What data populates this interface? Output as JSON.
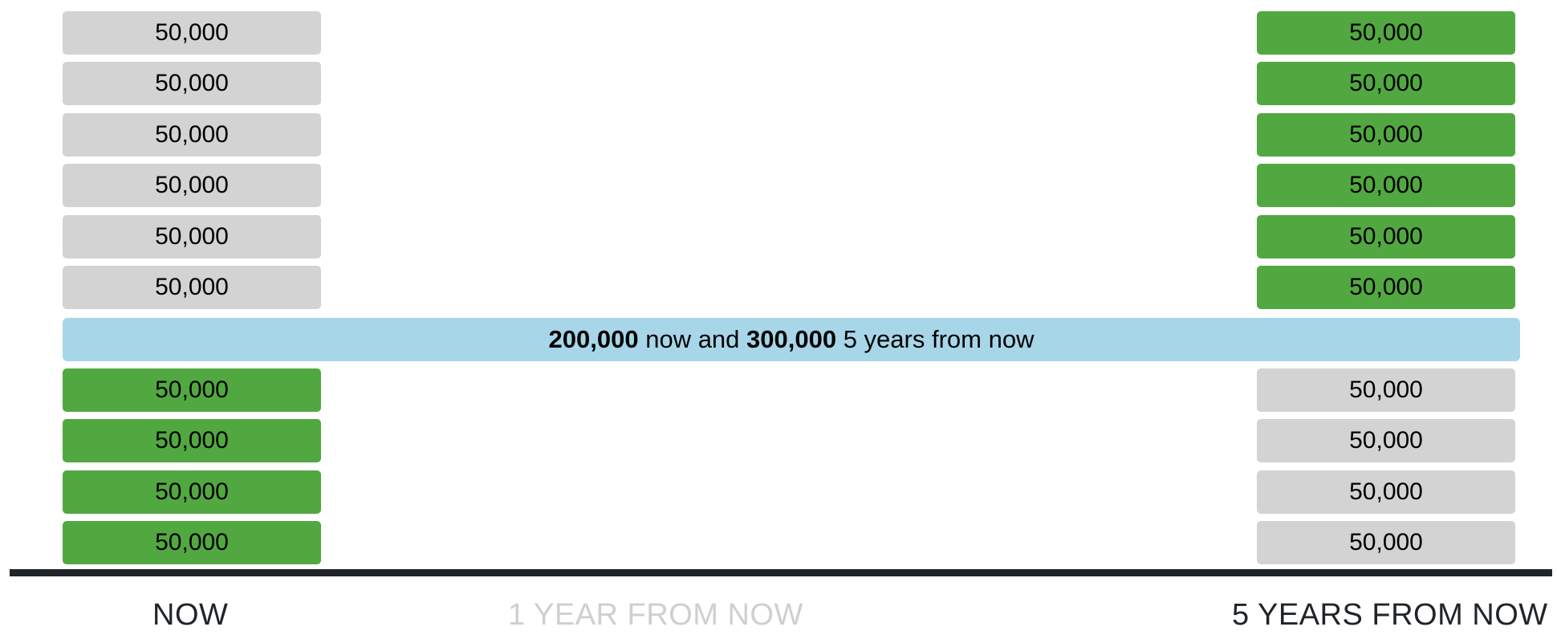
{
  "rows_top": [
    {
      "left": "50,000",
      "right": "50,000"
    },
    {
      "left": "50,000",
      "right": "50,000"
    },
    {
      "left": "50,000",
      "right": "50,000"
    },
    {
      "left": "50,000",
      "right": "50,000"
    },
    {
      "left": "50,000",
      "right": "50,000"
    },
    {
      "left": "50,000",
      "right": "50,000"
    }
  ],
  "rows_bottom": [
    {
      "left": "50,000",
      "right": "50,000"
    },
    {
      "left": "50,000",
      "right": "50,000"
    },
    {
      "left": "50,000",
      "right": "50,000"
    },
    {
      "left": "50,000",
      "right": "50,000"
    }
  ],
  "summary": {
    "amount_now": "200,000",
    "text_mid": " now and ",
    "amount_later": "300,000",
    "text_end": " 5 years from now"
  },
  "timeline": {
    "now": "NOW",
    "one_year": "1 YEAR FROM NOW",
    "five_years": "5 YEARS FROM NOW"
  },
  "colors": {
    "selected": "#52a840",
    "unselected": "#d3d3d3",
    "summary_bg": "#a7d6e9",
    "axis": "#212529",
    "label_active": "#212529",
    "label_inactive": "#cfcfcf"
  }
}
